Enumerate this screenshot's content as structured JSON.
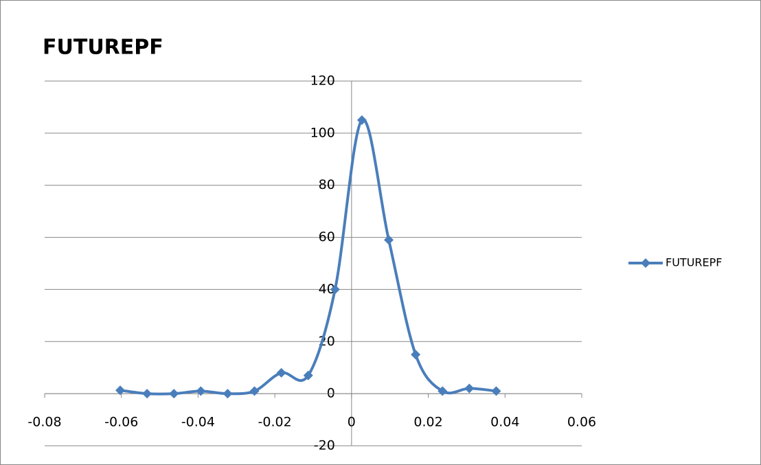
{
  "chart_data": {
    "type": "scatter",
    "title": "FUTUREPF",
    "smooth": true,
    "legend": "right",
    "x": [
      -0.0603,
      -0.0533,
      -0.0463,
      -0.0393,
      -0.0323,
      -0.0253,
      -0.0183,
      -0.0113,
      -0.0043,
      0.0027,
      0.0097,
      0.0167,
      0.0237,
      0.0307,
      0.0377
    ],
    "series": [
      {
        "name": "FUTUREPF",
        "color": "#4a7ebb",
        "values": [
          1.3,
          0,
          0,
          1,
          0,
          1,
          8,
          7,
          40,
          105,
          59,
          15,
          1,
          2,
          1
        ]
      }
    ],
    "xlim": [
      -0.08,
      0.06
    ],
    "xticks": [
      -0.08,
      -0.06,
      -0.04,
      -0.02,
      0,
      0.02,
      0.04,
      0.06
    ],
    "ylim": [
      -20,
      120
    ],
    "yticks": [
      -20,
      0,
      20,
      40,
      60,
      80,
      100,
      120
    ],
    "grid": true
  }
}
